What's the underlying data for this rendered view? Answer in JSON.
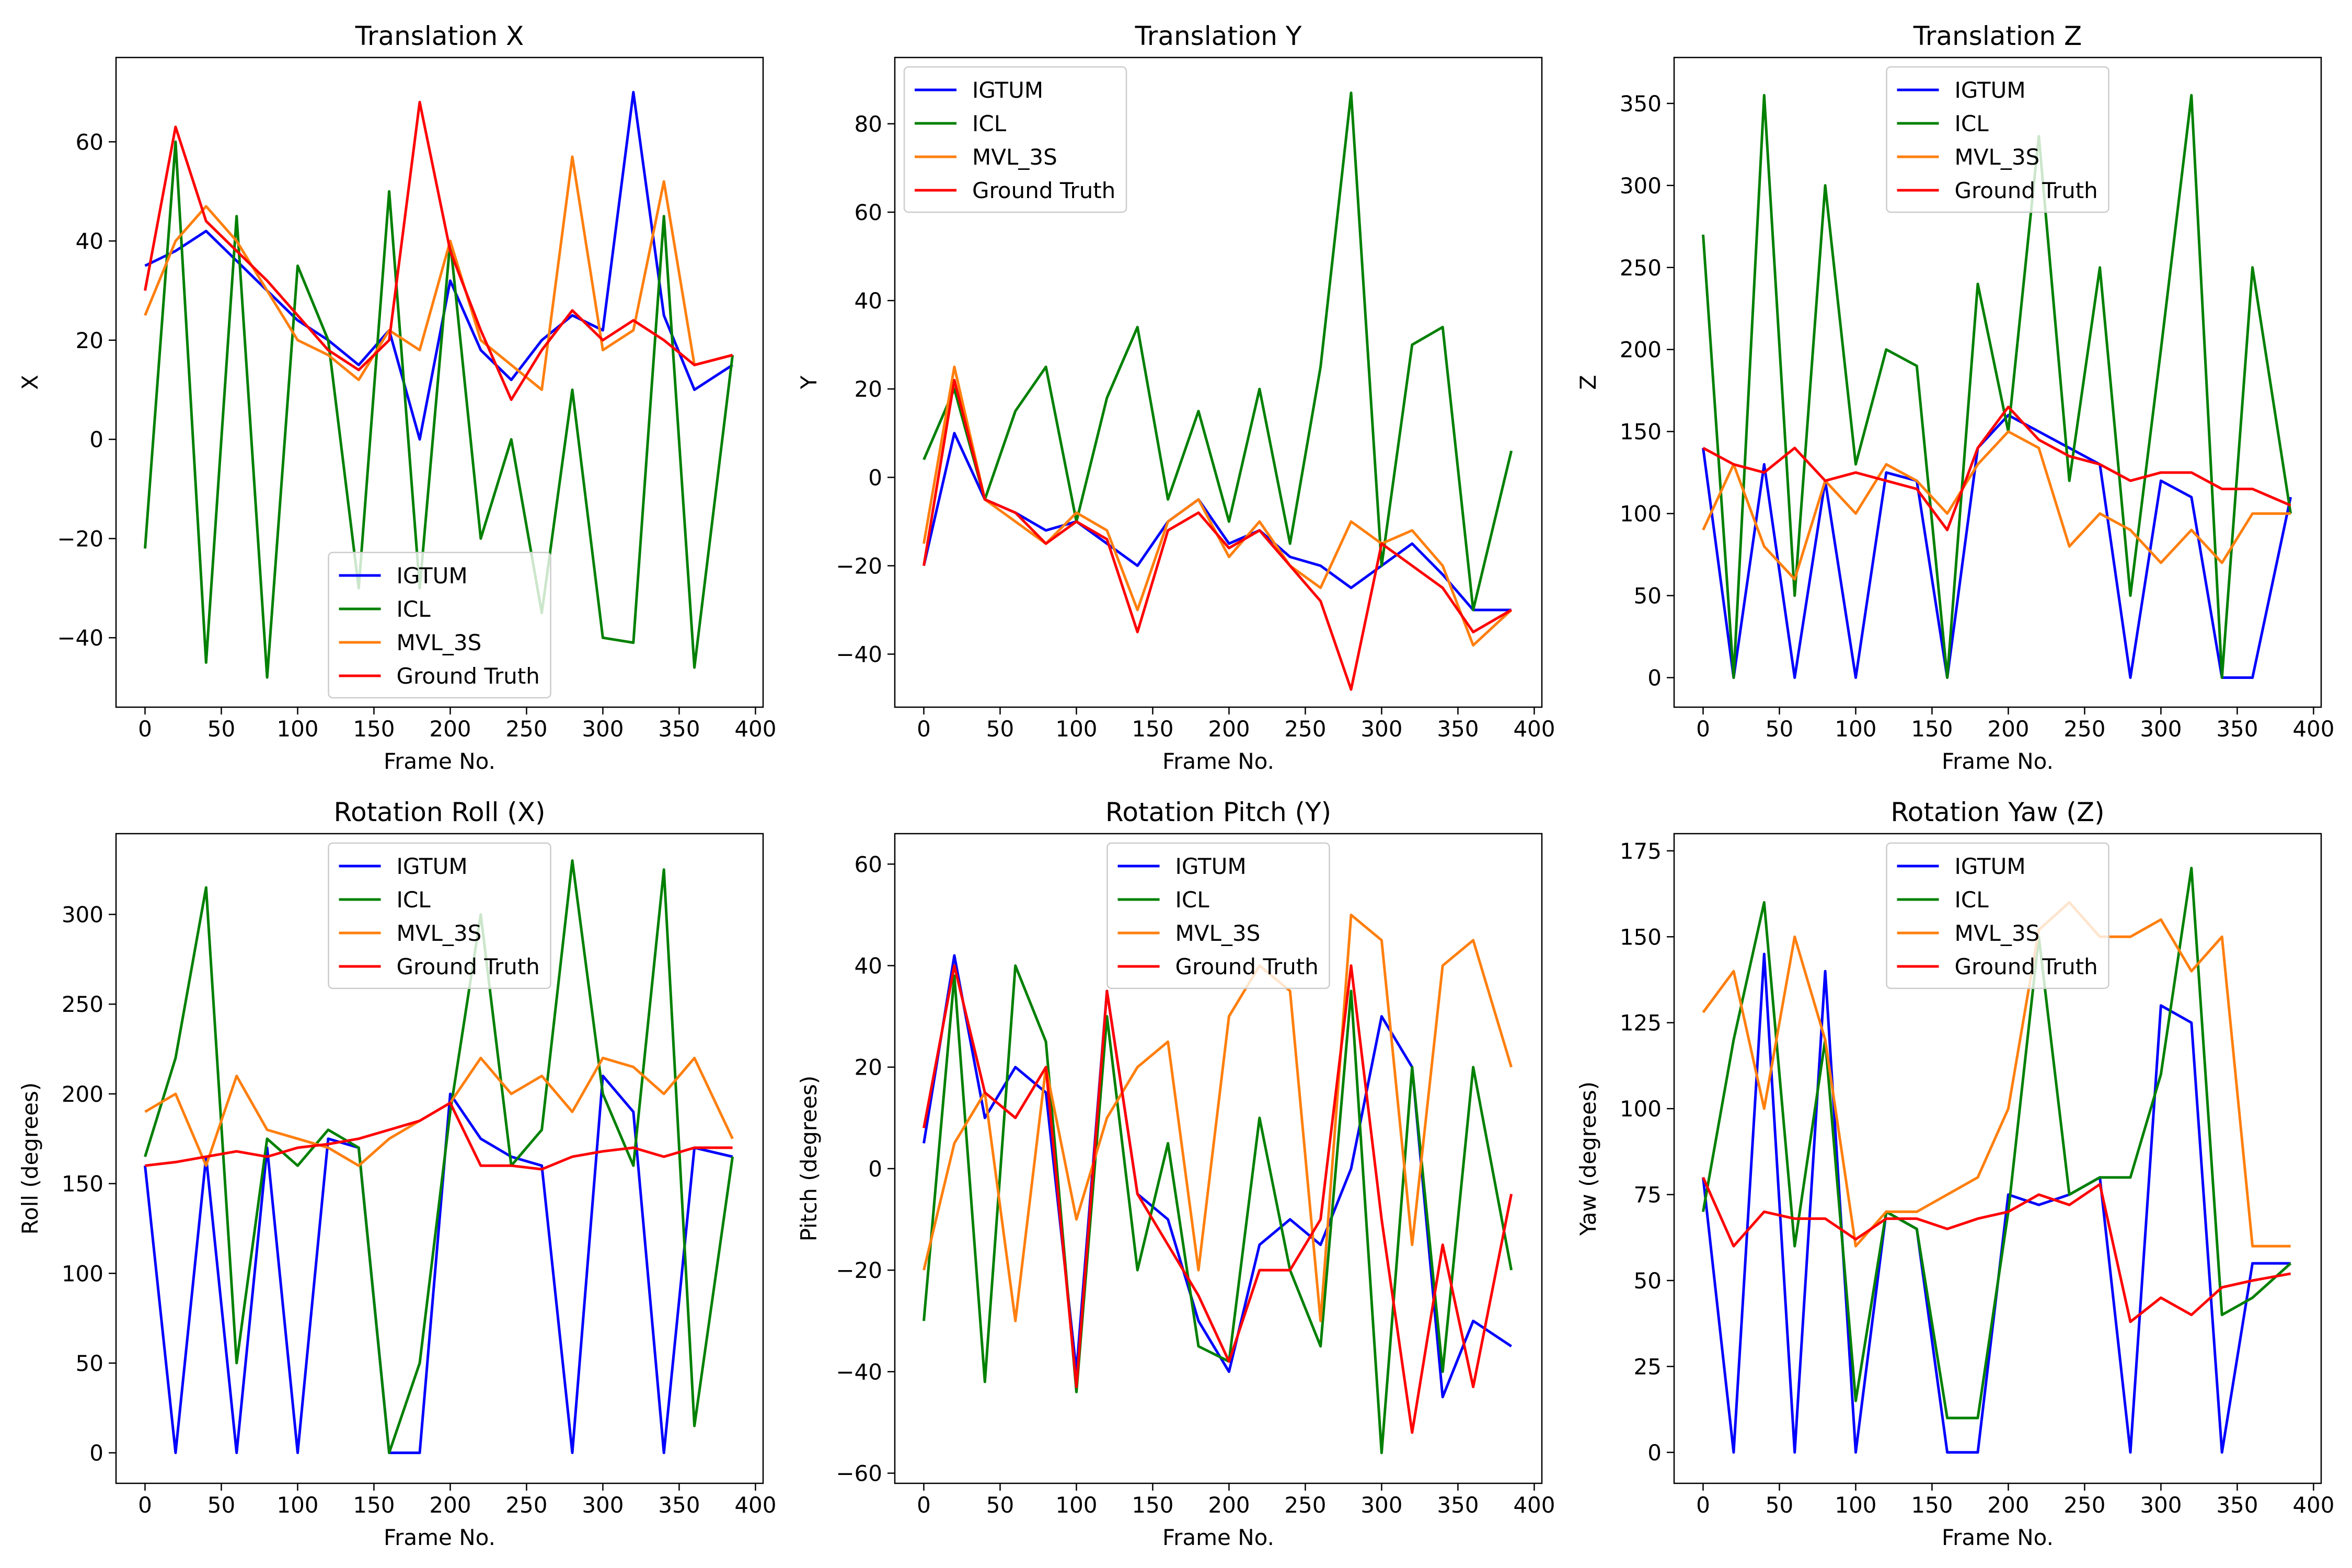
{
  "colors": {
    "IGTUM": "#0000ff",
    "ICL": "#008000",
    "MVL_3S": "#ff7f0e",
    "Ground Truth": "#ff0000"
  },
  "series_names": [
    "IGTUM",
    "ICL",
    "MVL_3S",
    "Ground Truth"
  ],
  "chart_data": [
    {
      "type": "line",
      "title": "Translation X",
      "xlabel": "Frame No.",
      "ylabel": "X",
      "xlim": [
        -19,
        405
      ],
      "ylim": [
        -54,
        77
      ],
      "xticks": [
        0,
        50,
        100,
        150,
        200,
        250,
        300,
        350,
        400
      ],
      "yticks": [
        -40,
        -20,
        0,
        20,
        40,
        60
      ],
      "legend": "lower-center",
      "x": [
        0,
        20,
        40,
        60,
        80,
        100,
        120,
        140,
        160,
        180,
        200,
        220,
        240,
        260,
        280,
        300,
        320,
        340,
        360,
        385
      ],
      "series": [
        {
          "name": "IGTUM",
          "values": [
            35,
            38,
            42,
            36,
            30,
            24,
            20,
            15,
            22,
            0,
            32,
            18,
            12,
            20,
            25,
            22,
            70,
            25,
            10,
            15
          ]
        },
        {
          "name": "ICL",
          "values": [
            -22,
            60,
            -45,
            45,
            -48,
            35,
            20,
            -30,
            50,
            -30,
            40,
            -20,
            0,
            -35,
            10,
            -40,
            -41,
            45,
            -46,
            17
          ]
        },
        {
          "name": "MVL_3S",
          "values": [
            25,
            40,
            47,
            40,
            30,
            20,
            17,
            12,
            22,
            18,
            40,
            20,
            15,
            10,
            57,
            18,
            22,
            52,
            15,
            17
          ]
        },
        {
          "name": "Ground Truth",
          "values": [
            30,
            63,
            44,
            38,
            32,
            25,
            18,
            14,
            20,
            68,
            38,
            22,
            8,
            18,
            26,
            20,
            24,
            20,
            15,
            17
          ]
        }
      ]
    },
    {
      "type": "line",
      "title": "Translation Y",
      "xlabel": "Frame No.",
      "ylabel": "Y",
      "xlim": [
        -19,
        405
      ],
      "ylim": [
        -52,
        95
      ],
      "xticks": [
        0,
        50,
        100,
        150,
        200,
        250,
        300,
        350,
        400
      ],
      "yticks": [
        -40,
        -20,
        0,
        20,
        40,
        60,
        80
      ],
      "legend": "upper-left",
      "x": [
        0,
        20,
        40,
        60,
        80,
        100,
        120,
        140,
        160,
        180,
        200,
        220,
        240,
        260,
        280,
        300,
        320,
        340,
        360,
        385
      ],
      "series": [
        {
          "name": "IGTUM",
          "values": [
            -20,
            10,
            -5,
            -8,
            -12,
            -10,
            -15,
            -20,
            -10,
            -5,
            -15,
            -12,
            -18,
            -20,
            -25,
            -20,
            -15,
            -22,
            -30,
            -30
          ]
        },
        {
          "name": "ICL",
          "values": [
            4,
            20,
            -5,
            15,
            25,
            -10,
            18,
            34,
            -5,
            15,
            -10,
            20,
            -15,
            25,
            87,
            -20,
            30,
            34,
            -30,
            6
          ]
        },
        {
          "name": "MVL_3S",
          "values": [
            -15,
            25,
            -5,
            -10,
            -15,
            -8,
            -12,
            -30,
            -10,
            -5,
            -18,
            -10,
            -20,
            -25,
            -10,
            -15,
            -12,
            -20,
            -38,
            -30
          ]
        },
        {
          "name": "Ground Truth",
          "values": [
            -20,
            22,
            -5,
            -8,
            -15,
            -10,
            -14,
            -35,
            -12,
            -8,
            -16,
            -12,
            -20,
            -28,
            -48,
            -15,
            -20,
            -25,
            -35,
            -30
          ]
        }
      ]
    },
    {
      "type": "line",
      "title": "Translation Z",
      "xlabel": "Frame No.",
      "ylabel": "Z",
      "xlim": [
        -19,
        405
      ],
      "ylim": [
        -18,
        378
      ],
      "xticks": [
        0,
        50,
        100,
        150,
        200,
        250,
        300,
        350,
        400
      ],
      "yticks": [
        0,
        50,
        100,
        150,
        200,
        250,
        300,
        350
      ],
      "legend": "upper-center",
      "x": [
        0,
        20,
        40,
        60,
        80,
        100,
        120,
        140,
        160,
        180,
        200,
        220,
        240,
        260,
        280,
        300,
        320,
        340,
        360,
        385
      ],
      "series": [
        {
          "name": "IGTUM",
          "values": [
            140,
            0,
            130,
            0,
            120,
            0,
            125,
            120,
            0,
            140,
            160,
            150,
            140,
            130,
            0,
            120,
            110,
            0,
            0,
            110
          ]
        },
        {
          "name": "ICL",
          "values": [
            270,
            0,
            355,
            50,
            300,
            130,
            200,
            190,
            0,
            240,
            150,
            330,
            120,
            250,
            50,
            200,
            355,
            0,
            250,
            100
          ]
        },
        {
          "name": "MVL_3S",
          "values": [
            90,
            130,
            80,
            60,
            120,
            100,
            130,
            120,
            100,
            130,
            150,
            140,
            80,
            100,
            90,
            70,
            90,
            70,
            100,
            100
          ]
        },
        {
          "name": "Ground Truth",
          "values": [
            140,
            130,
            125,
            140,
            120,
            125,
            120,
            115,
            90,
            140,
            165,
            145,
            135,
            130,
            120,
            125,
            125,
            115,
            115,
            105
          ]
        }
      ]
    },
    {
      "type": "line",
      "title": "Rotation Roll (X)",
      "xlabel": "Frame No.",
      "ylabel": "Roll (degrees)",
      "xlim": [
        -19,
        405
      ],
      "ylim": [
        -17,
        345
      ],
      "xticks": [
        0,
        50,
        100,
        150,
        200,
        250,
        300,
        350,
        400
      ],
      "yticks": [
        0,
        50,
        100,
        150,
        200,
        250,
        300
      ],
      "legend": "upper-center",
      "x": [
        0,
        20,
        40,
        60,
        80,
        100,
        120,
        140,
        160,
        180,
        200,
        220,
        240,
        260,
        280,
        300,
        320,
        340,
        360,
        385
      ],
      "series": [
        {
          "name": "IGTUM",
          "values": [
            160,
            0,
            165,
            0,
            170,
            0,
            175,
            170,
            0,
            0,
            200,
            175,
            165,
            160,
            0,
            210,
            190,
            0,
            170,
            165
          ]
        },
        {
          "name": "ICL",
          "values": [
            165,
            220,
            315,
            50,
            175,
            160,
            180,
            170,
            0,
            50,
            190,
            300,
            160,
            180,
            330,
            200,
            160,
            325,
            15,
            165
          ]
        },
        {
          "name": "MVL_3S",
          "values": [
            190,
            200,
            160,
            210,
            180,
            175,
            170,
            160,
            175,
            185,
            195,
            220,
            200,
            210,
            190,
            220,
            215,
            200,
            220,
            175
          ]
        },
        {
          "name": "Ground Truth",
          "values": [
            160,
            162,
            165,
            168,
            165,
            170,
            172,
            175,
            180,
            185,
            195,
            160,
            160,
            158,
            165,
            168,
            170,
            165,
            170,
            170
          ]
        }
      ]
    },
    {
      "type": "line",
      "title": "Rotation Pitch (Y)",
      "xlabel": "Frame No.",
      "ylabel": "Pitch (degrees)",
      "xlim": [
        -19,
        405
      ],
      "ylim": [
        -62,
        66
      ],
      "xticks": [
        0,
        50,
        100,
        150,
        200,
        250,
        300,
        350,
        400
      ],
      "yticks": [
        -60,
        -40,
        -20,
        0,
        20,
        40,
        60
      ],
      "legend": "upper-center",
      "x": [
        0,
        20,
        40,
        60,
        80,
        100,
        120,
        140,
        160,
        180,
        200,
        220,
        240,
        260,
        280,
        300,
        320,
        340,
        360,
        385
      ],
      "series": [
        {
          "name": "IGTUM",
          "values": [
            5,
            42,
            10,
            20,
            15,
            -40,
            35,
            -5,
            -10,
            -30,
            -40,
            -15,
            -10,
            -15,
            0,
            30,
            20,
            -45,
            -30,
            -35
          ]
        },
        {
          "name": "ICL",
          "values": [
            -30,
            38,
            -42,
            40,
            25,
            -44,
            30,
            -20,
            5,
            -35,
            -38,
            10,
            -20,
            -35,
            35,
            -56,
            20,
            -40,
            20,
            -20
          ]
        },
        {
          "name": "MVL_3S",
          "values": [
            -20,
            5,
            15,
            -30,
            20,
            -10,
            10,
            20,
            25,
            -20,
            30,
            40,
            35,
            -30,
            50,
            45,
            -15,
            40,
            45,
            20
          ]
        },
        {
          "name": "Ground Truth",
          "values": [
            8,
            40,
            15,
            10,
            20,
            -43,
            35,
            -5,
            -15,
            -25,
            -38,
            -20,
            -20,
            -10,
            40,
            -10,
            -52,
            -15,
            -43,
            -5
          ]
        }
      ]
    },
    {
      "type": "line",
      "title": "Rotation Yaw (Z)",
      "xlabel": "Frame No.",
      "ylabel": "Yaw (degrees)",
      "xlim": [
        -19,
        405
      ],
      "ylim": [
        -9,
        180
      ],
      "xticks": [
        0,
        50,
        100,
        150,
        200,
        250,
        300,
        350,
        400
      ],
      "yticks": [
        0,
        25,
        50,
        75,
        100,
        125,
        150,
        175
      ],
      "legend": "upper-center",
      "x": [
        0,
        20,
        40,
        60,
        80,
        100,
        120,
        140,
        160,
        180,
        200,
        220,
        240,
        260,
        280,
        300,
        320,
        340,
        360,
        385
      ],
      "series": [
        {
          "name": "IGTUM",
          "values": [
            80,
            0,
            145,
            0,
            140,
            0,
            70,
            65,
            0,
            0,
            75,
            72,
            75,
            80,
            0,
            130,
            125,
            0,
            55,
            55
          ]
        },
        {
          "name": "ICL",
          "values": [
            70,
            120,
            160,
            60,
            120,
            15,
            70,
            65,
            10,
            10,
            70,
            150,
            75,
            80,
            80,
            110,
            170,
            40,
            45,
            55
          ]
        },
        {
          "name": "MVL_3S",
          "values": [
            128,
            140,
            100,
            150,
            120,
            60,
            70,
            70,
            75,
            80,
            100,
            152,
            160,
            150,
            150,
            155,
            140,
            150,
            60,
            60
          ]
        },
        {
          "name": "Ground Truth",
          "values": [
            80,
            60,
            70,
            68,
            68,
            62,
            68,
            68,
            65,
            68,
            70,
            75,
            72,
            78,
            38,
            45,
            40,
            48,
            50,
            52
          ]
        }
      ]
    }
  ]
}
